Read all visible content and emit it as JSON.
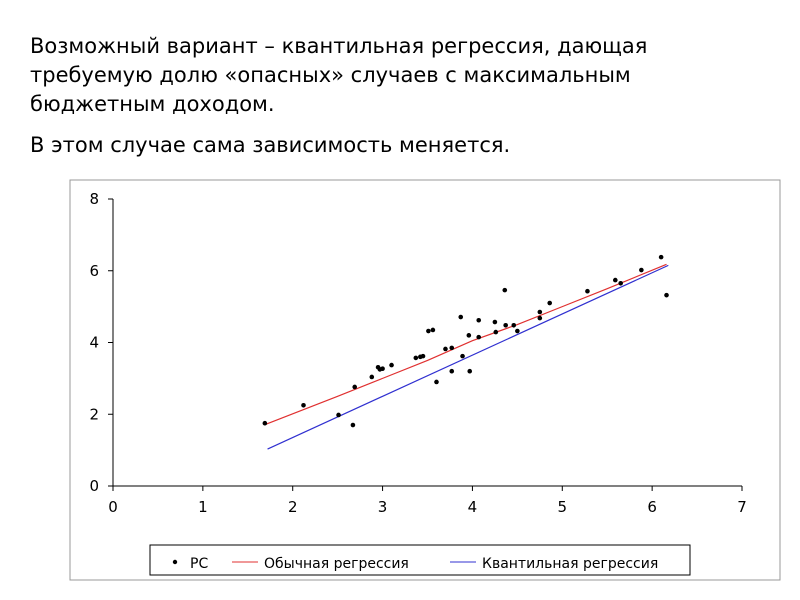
{
  "slide": {
    "paragraph1": "Возможный вариант – квантильная регрессия, дающая требуемую долю «опасных» случаев с максимальным бюджетным доходом.",
    "paragraph2": "В этом случае сама зависимость меняется."
  },
  "chart_data": {
    "type": "scatter",
    "title": "",
    "xlabel": "",
    "ylabel": "",
    "xlim": [
      0,
      7
    ],
    "ylim": [
      0,
      8
    ],
    "xticks": [
      "0",
      "1",
      "2",
      "3",
      "4",
      "5",
      "6",
      "7"
    ],
    "yticks": [
      "0",
      "2",
      "4",
      "6",
      "8"
    ],
    "grid": false,
    "legend_position": "bottom",
    "series": [
      {
        "name": "PC",
        "type": "scatter",
        "color": "#000000",
        "points": [
          [
            1.69,
            1.75
          ],
          [
            2.12,
            2.25
          ],
          [
            2.51,
            1.98
          ],
          [
            2.67,
            1.7
          ],
          [
            2.69,
            2.76
          ],
          [
            2.88,
            3.04
          ],
          [
            2.95,
            3.31
          ],
          [
            2.97,
            3.25
          ],
          [
            3.0,
            3.27
          ],
          [
            3.1,
            3.37
          ],
          [
            3.37,
            3.57
          ],
          [
            3.42,
            3.6
          ],
          [
            3.45,
            3.62
          ],
          [
            3.51,
            4.32
          ],
          [
            3.56,
            4.35
          ],
          [
            3.6,
            2.9
          ],
          [
            3.7,
            3.82
          ],
          [
            3.77,
            3.85
          ],
          [
            3.77,
            3.2
          ],
          [
            3.87,
            4.71
          ],
          [
            3.89,
            3.62
          ],
          [
            3.96,
            4.2
          ],
          [
            3.97,
            3.2
          ],
          [
            4.07,
            4.15
          ],
          [
            4.07,
            4.62
          ],
          [
            4.25,
            4.57
          ],
          [
            4.26,
            4.29
          ],
          [
            4.36,
            5.46
          ],
          [
            4.37,
            4.48
          ],
          [
            4.46,
            4.48
          ],
          [
            4.5,
            4.32
          ],
          [
            4.75,
            4.68
          ],
          [
            4.75,
            4.85
          ],
          [
            4.86,
            5.1
          ],
          [
            5.28,
            5.43
          ],
          [
            5.59,
            5.74
          ],
          [
            5.65,
            5.65
          ],
          [
            5.88,
            6.02
          ],
          [
            6.1,
            6.38
          ],
          [
            6.16,
            5.32
          ]
        ]
      },
      {
        "name": "Обычная регрессия",
        "type": "line",
        "color": "#e03030",
        "points": [
          [
            1.7,
            1.72
          ],
          [
            2.5,
            2.5
          ],
          [
            3.0,
            3.0
          ],
          [
            3.5,
            3.5
          ],
          [
            4.0,
            4.05
          ],
          [
            4.5,
            4.5
          ],
          [
            5.0,
            5.0
          ],
          [
            5.5,
            5.5
          ],
          [
            6.16,
            6.18
          ]
        ]
      },
      {
        "name": "Квантильная регрессия",
        "type": "line",
        "color": "#3030d0",
        "points": [
          [
            1.72,
            1.03
          ],
          [
            6.18,
            6.15
          ]
        ]
      }
    ]
  }
}
